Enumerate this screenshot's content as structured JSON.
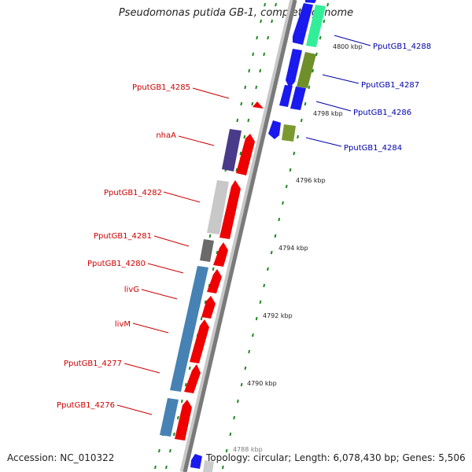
{
  "title": "Pseudomonas putida GB-1, complete genome",
  "colors": {
    "forward_label": "#cc0000",
    "reverse_label": "#0000aa",
    "backbone": "#808080",
    "tick": "#228822"
  },
  "kbp_labels": [
    "4800 kbp",
    "4798 kbp",
    "4796 kbp",
    "4794 kbp",
    "4792 kbp",
    "4790 kbp",
    "4788 kbp"
  ],
  "genes_reverse": [
    {
      "name": "PputGB1_4288",
      "fill": "#1a1aee"
    },
    {
      "name": "PputGB1_4287",
      "fill": "#6f8f2a"
    },
    {
      "name": "PputGB1_4286",
      "fill": "#1a1aee"
    },
    {
      "name": "PputGB1_4284",
      "fill": "#7a9a30"
    }
  ],
  "genes_forward": [
    {
      "name": "PputGB1_4285",
      "fill": "#ee0000"
    },
    {
      "name": "nhaA",
      "fill": "#4a3a8a"
    },
    {
      "name": "PputGB1_4282",
      "fill": "#c8c8c8"
    },
    {
      "name": "PputGB1_4281",
      "fill": "#6a6a6a"
    },
    {
      "name": "PputGB1_4280",
      "fill": "#ee0000"
    },
    {
      "name": "livG",
      "fill": "#4682b4"
    },
    {
      "name": "livM",
      "fill": "#4682b4"
    },
    {
      "name": "PputGB1_4277",
      "fill": "#4682b4"
    },
    {
      "name": "PputGB1_4276",
      "fill": "#4682b4"
    }
  ],
  "footer": {
    "accession": "Accession: NC_010322",
    "topology": "Topology: circular; Length: 6,078,430 bp; Genes: 5,506"
  }
}
